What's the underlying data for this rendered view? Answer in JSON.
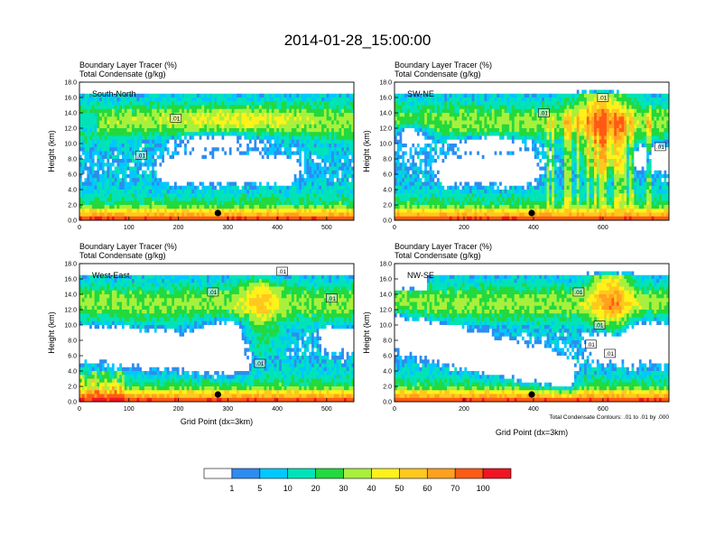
{
  "page": {
    "title": "2014-01-28_15:00:00",
    "panel_title_line1": "Boundary Layer Tracer   (%)",
    "panel_title_line2": "Total Condensate   (g/kg)",
    "ylabel": "Height (km)",
    "xlabel": "Grid Point (dx=3km)",
    "contour_note": "Total Condensate Contours: .01 to .01 by .000"
  },
  "colors": {
    "levels": [
      "#ffffff",
      "#2d8cf0",
      "#00c8ff",
      "#00e3b8",
      "#22d93e",
      "#a8f03c",
      "#fff11a",
      "#ffc81e",
      "#ffa01e",
      "#ff5a14",
      "#f01423"
    ]
  },
  "chart_data": [
    {
      "type": "heatmap",
      "label": "South-North",
      "xlim": [
        0,
        555
      ],
      "xticks": [
        "0",
        "100",
        "200",
        "300",
        "400",
        "500"
      ],
      "xtick_values": [
        0,
        100,
        200,
        300,
        400,
        500
      ],
      "ylim": [
        0,
        18
      ],
      "yticks": [
        "0.0",
        "2.0",
        "4.0",
        "6.0",
        "8.0",
        "10.0",
        "12.0",
        "14.0",
        "16.0",
        "18.0"
      ],
      "marker_x": 280,
      "contour_labels": [
        {
          "text": ".01",
          "x": 195,
          "y": 13.3
        },
        {
          "text": ".01",
          "x": 125,
          "y": 8.5
        }
      ]
    },
    {
      "type": "heatmap",
      "label": "SW-NE",
      "xlim": [
        0,
        790
      ],
      "xticks": [
        "0",
        "200",
        "400",
        "600"
      ],
      "xtick_values": [
        0,
        200,
        400,
        600
      ],
      "ylim": [
        0,
        18
      ],
      "yticks": [
        "0.0",
        "2.0",
        "4.0",
        "6.0",
        "8.0",
        "10.0",
        "12.0",
        "14.0",
        "16.0",
        "18.0"
      ],
      "marker_x": 395,
      "contour_labels": [
        {
          "text": ".01",
          "x": 430,
          "y": 14.0
        },
        {
          "text": ".01",
          "x": 600,
          "y": 16.0
        },
        {
          "text": ".01",
          "x": 765,
          "y": 9.6
        }
      ]
    },
    {
      "type": "heatmap",
      "label": "West-East",
      "xlim": [
        0,
        555
      ],
      "xticks": [
        "0",
        "100",
        "200",
        "300",
        "400",
        "500"
      ],
      "xtick_values": [
        0,
        100,
        200,
        300,
        400,
        500
      ],
      "ylim": [
        0,
        18
      ],
      "yticks": [
        "0.0",
        "2.0",
        "4.0",
        "6.0",
        "8.0",
        "10.0",
        "12.0",
        "14.0",
        "16.0",
        "18.0"
      ],
      "marker_x": 280,
      "contour_labels": [
        {
          "text": ".01",
          "x": 410,
          "y": 17.0
        },
        {
          "text": ".01",
          "x": 270,
          "y": 14.3
        },
        {
          "text": ".01",
          "x": 510,
          "y": 13.5
        },
        {
          "text": ".01",
          "x": 365,
          "y": 5.0
        }
      ]
    },
    {
      "type": "heatmap",
      "label": "NW-SE",
      "xlim": [
        0,
        790
      ],
      "xticks": [
        "0",
        "200",
        "400",
        "600"
      ],
      "xtick_values": [
        0,
        200,
        400,
        600
      ],
      "ylim": [
        0,
        18
      ],
      "yticks": [
        "0.0",
        "2.0",
        "4.0",
        "6.0",
        "8.0",
        "10.0",
        "12.0",
        "14.0",
        "16.0",
        "18.0"
      ],
      "marker_x": 395,
      "contour_labels": [
        {
          "text": ".01",
          "x": 530,
          "y": 14.3
        },
        {
          "text": ".01",
          "x": 590,
          "y": 10.0
        },
        {
          "text": ".01",
          "x": 565,
          "y": 7.5
        },
        {
          "text": ".01",
          "x": 620,
          "y": 6.3
        }
      ]
    }
  ],
  "colorbar": {
    "labels": [
      "1",
      "5",
      "10",
      "20",
      "30",
      "40",
      "50",
      "60",
      "70",
      "100"
    ]
  }
}
